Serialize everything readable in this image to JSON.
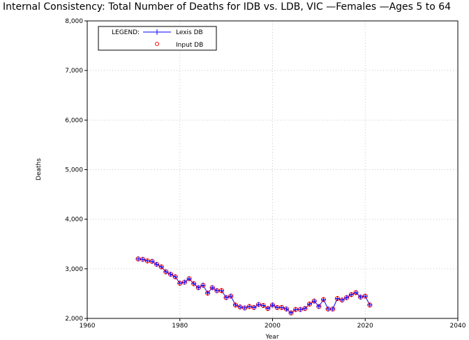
{
  "chart_data": {
    "type": "line",
    "title": "Internal Consistency: Total Number of Deaths for IDB vs. LDB, VIC —Females —Ages 5 to 64",
    "xlabel": "Year",
    "ylabel": "Deaths",
    "xlim": [
      1960,
      2040
    ],
    "ylim": [
      2000,
      8000
    ],
    "x_ticks": [
      "1960",
      "1980",
      "2000",
      "2020",
      "2040"
    ],
    "y_ticks": [
      "2,000",
      "3,000",
      "4,000",
      "5,000",
      "6,000",
      "7,000",
      "8,000"
    ],
    "grid": true,
    "legend_position": "top-left",
    "legend_title": "LEGEND:",
    "x": [
      1971,
      1972,
      1973,
      1974,
      1975,
      1976,
      1977,
      1978,
      1979,
      1980,
      1981,
      1982,
      1983,
      1984,
      1985,
      1986,
      1987,
      1988,
      1989,
      1990,
      1991,
      1992,
      1993,
      1994,
      1995,
      1996,
      1997,
      1998,
      1999,
      2000,
      2001,
      2002,
      2003,
      2004,
      2005,
      2006,
      2007,
      2008,
      2009,
      2010,
      2011,
      2012,
      2013,
      2014,
      2015,
      2016,
      2017,
      2018,
      2019,
      2020,
      2021
    ],
    "series": [
      {
        "name": "Lexis DB",
        "color": "#0000ff",
        "marker": "+",
        "values": [
          3200,
          3190,
          3160,
          3150,
          3090,
          3040,
          2940,
          2890,
          2840,
          2710,
          2730,
          2800,
          2700,
          2620,
          2670,
          2510,
          2620,
          2560,
          2560,
          2420,
          2450,
          2270,
          2230,
          2210,
          2240,
          2220,
          2280,
          2260,
          2200,
          2270,
          2220,
          2220,
          2190,
          2110,
          2180,
          2180,
          2200,
          2290,
          2350,
          2240,
          2380,
          2190,
          2190,
          2400,
          2370,
          2420,
          2480,
          2520,
          2430,
          2450,
          2270
        ]
      },
      {
        "name": "Input DB",
        "color": "#ff0000",
        "marker": "o",
        "values": [
          3200,
          3190,
          3160,
          3150,
          3090,
          3040,
          2940,
          2890,
          2840,
          2710,
          2730,
          2800,
          2700,
          2620,
          2670,
          2510,
          2620,
          2560,
          2560,
          2420,
          2450,
          2270,
          2230,
          2210,
          2240,
          2220,
          2280,
          2260,
          2200,
          2270,
          2220,
          2220,
          2190,
          2110,
          2180,
          2180,
          2200,
          2290,
          2350,
          2240,
          2380,
          2190,
          2190,
          2400,
          2370,
          2420,
          2480,
          2520,
          2430,
          2450,
          2270
        ]
      }
    ]
  }
}
